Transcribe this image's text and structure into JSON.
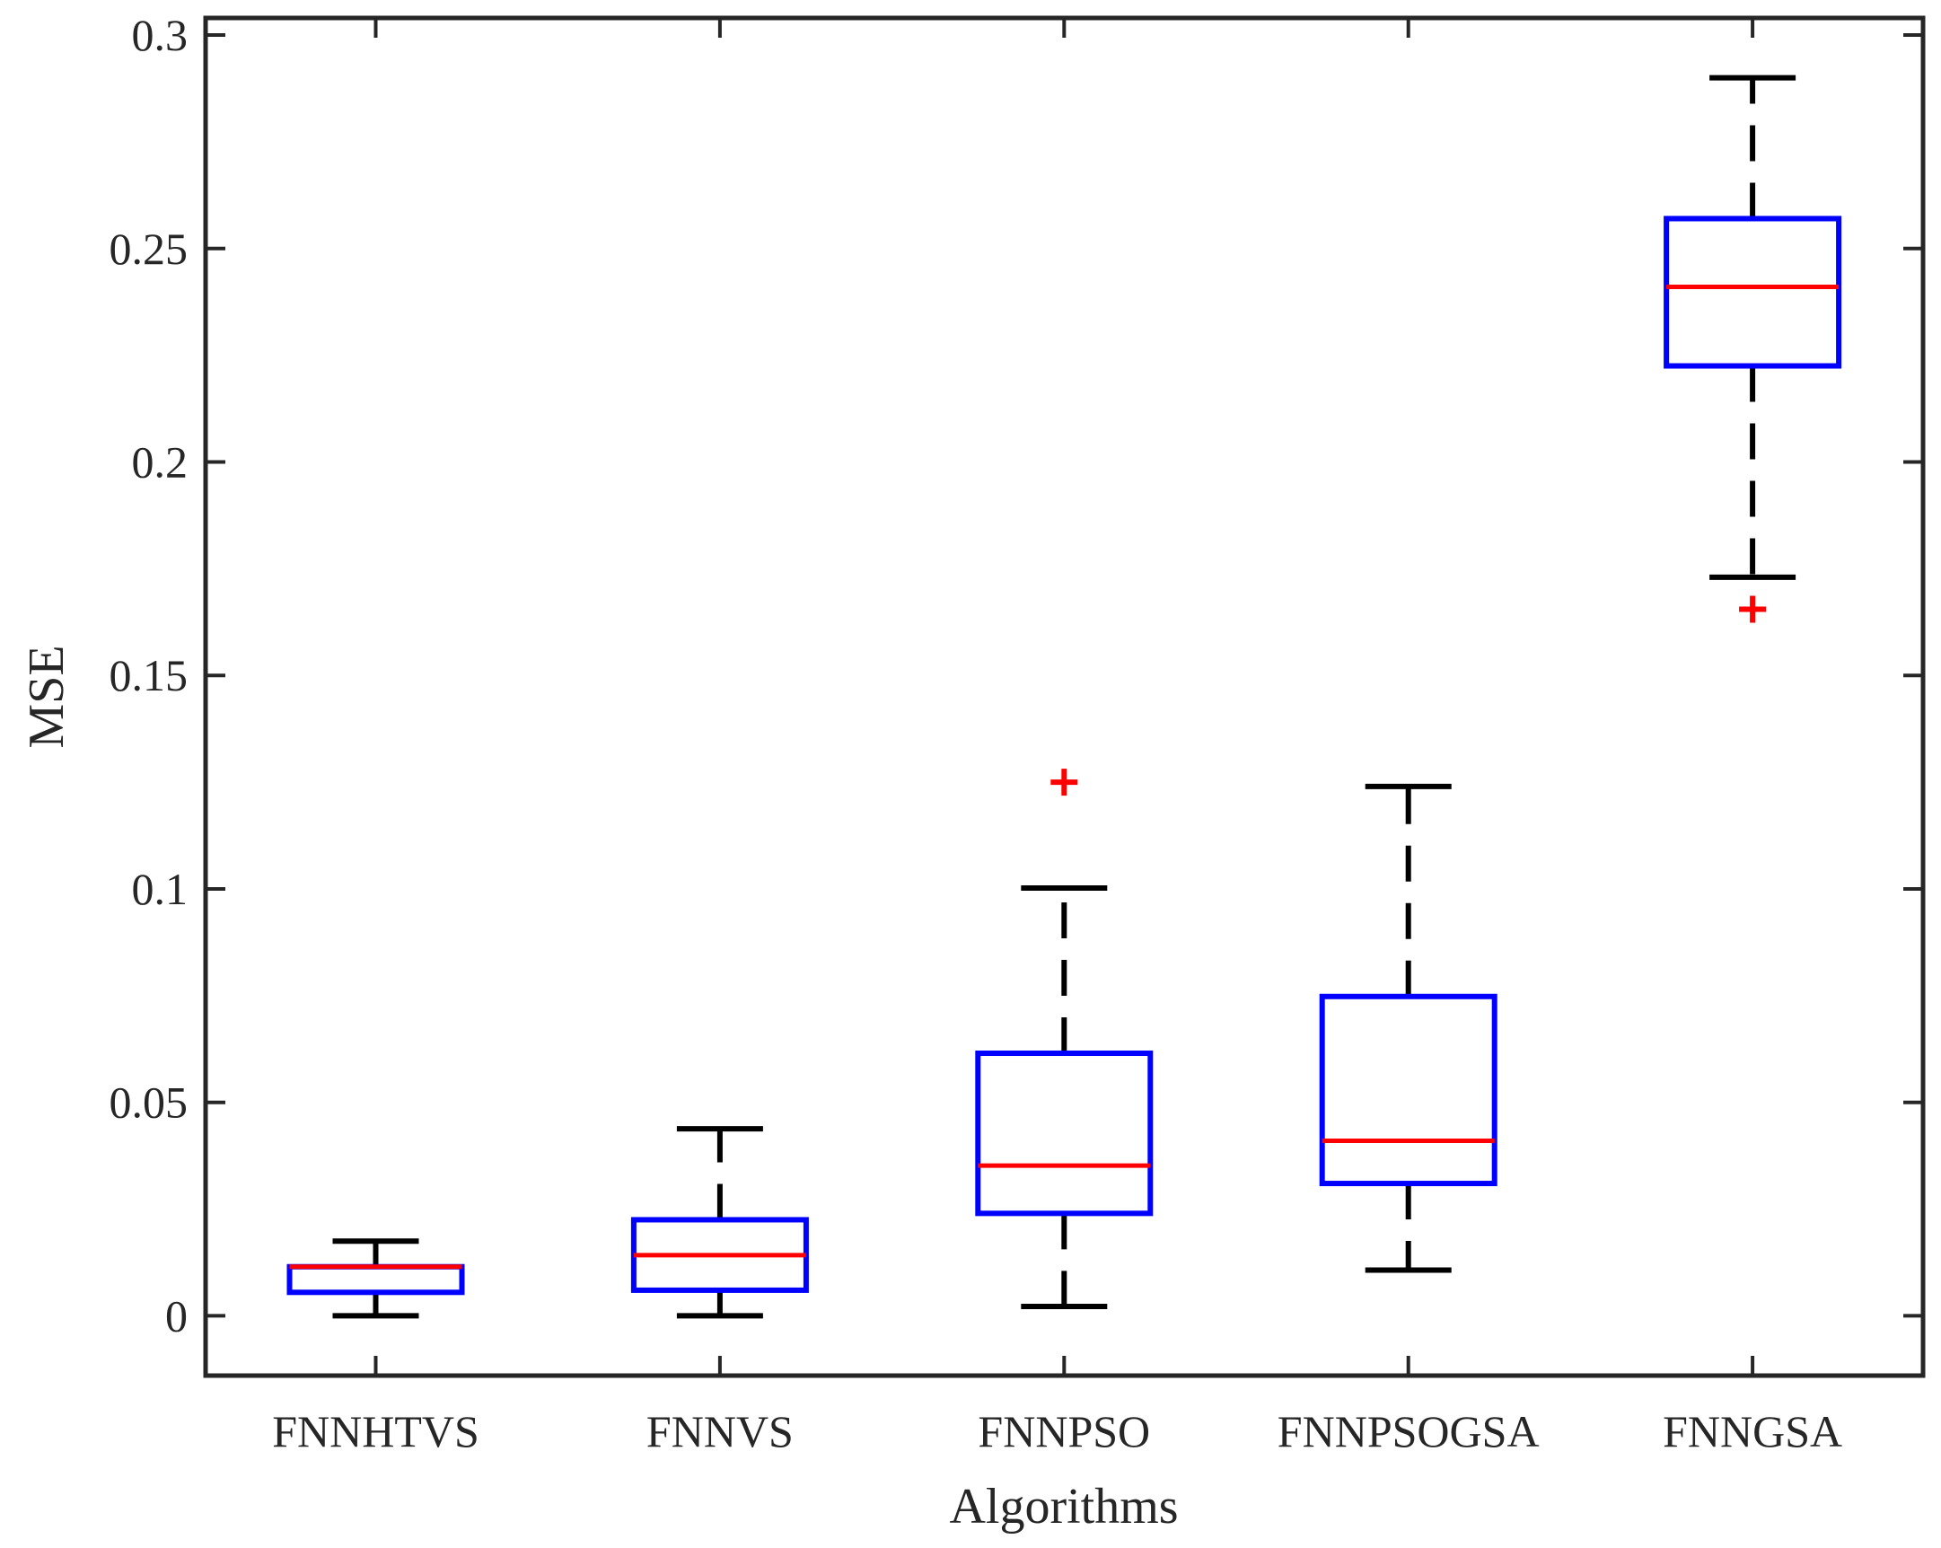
{
  "chart_data": {
    "type": "boxplot",
    "title": "",
    "xlabel": "Algorithms",
    "ylabel": "MSE",
    "ylim": [
      -0.014,
      0.304
    ],
    "yticks": [
      0,
      0.05,
      0.1,
      0.15,
      0.2,
      0.25,
      0.3
    ],
    "ytick_labels": [
      "0",
      "0.05",
      "0.1",
      "0.15",
      "0.2",
      "0.25",
      "0.3"
    ],
    "categories": [
      "FNNHTVS",
      "FNNVS",
      "FNNPSO",
      "FNNPSOGSA",
      "FNNGSA"
    ],
    "boxes": [
      {
        "name": "FNNHTVS",
        "whisker_low": 0.0,
        "q1": 0.0055,
        "median": 0.0115,
        "q3": 0.0115,
        "whisker_high": 0.0175,
        "outliers": []
      },
      {
        "name": "FNNVS",
        "whisker_low": 0.0,
        "q1": 0.006,
        "median": 0.0142,
        "q3": 0.0225,
        "whisker_high": 0.0438,
        "outliers": []
      },
      {
        "name": "FNNPSO",
        "whisker_low": 0.0022,
        "q1": 0.024,
        "median": 0.0352,
        "q3": 0.0615,
        "whisker_high": 0.1002,
        "outliers": [
          0.125
        ]
      },
      {
        "name": "FNNPSOGSA",
        "whisker_low": 0.0107,
        "q1": 0.031,
        "median": 0.041,
        "q3": 0.0748,
        "whisker_high": 0.124,
        "outliers": []
      },
      {
        "name": "FNNGSA",
        "whisker_low": 0.173,
        "q1": 0.2225,
        "median": 0.241,
        "q3": 0.257,
        "whisker_high": 0.29,
        "outliers": [
          0.1655
        ]
      }
    ],
    "colors": {
      "box": "#0000ff",
      "median": "#ff0000",
      "whisker": "#000000",
      "outlier": "#ff0000",
      "axis": "#262626"
    }
  }
}
